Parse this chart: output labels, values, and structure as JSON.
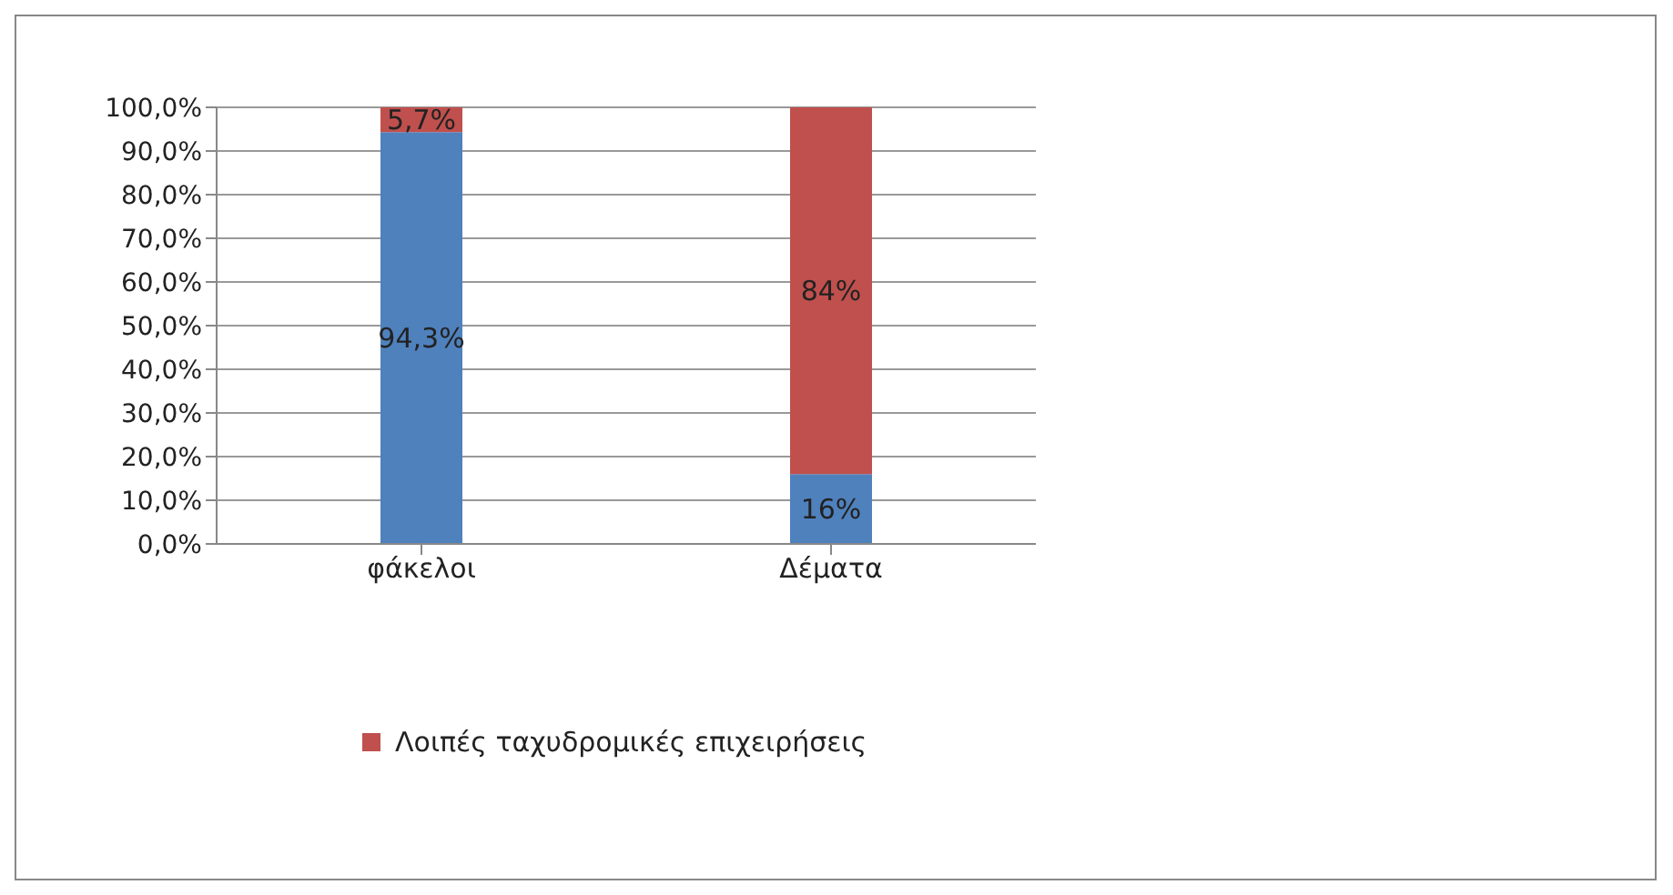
{
  "chart_data": {
    "type": "bar",
    "stacked": true,
    "categories": [
      "φάκελοι",
      "Δέματα"
    ],
    "series": [
      {
        "color": "#4f81bd",
        "values": [
          94.3,
          16
        ],
        "value_labels": [
          "94,3%",
          "16%"
        ]
      },
      {
        "name": "Λοιπές ταχυδρομικές επιχειρήσεις",
        "color": "#c0504d",
        "values": [
          5.7,
          84
        ],
        "value_labels": [
          "5,7%",
          "84%"
        ]
      }
    ],
    "ylim": [
      0,
      100
    ],
    "yticks": [
      {
        "value": 0,
        "label": "0,0%"
      },
      {
        "value": 10,
        "label": "10,0%"
      },
      {
        "value": 20,
        "label": "20,0%"
      },
      {
        "value": 30,
        "label": "30,0%"
      },
      {
        "value": 40,
        "label": "40,0%"
      },
      {
        "value": 50,
        "label": "50,0%"
      },
      {
        "value": 60,
        "label": "60,0%"
      },
      {
        "value": 70,
        "label": "70,0%"
      },
      {
        "value": 80,
        "label": "80,0%"
      },
      {
        "value": 90,
        "label": "90,0%"
      },
      {
        "value": 100,
        "label": "100,0%"
      }
    ],
    "grid": "y",
    "legend": "bottom"
  }
}
